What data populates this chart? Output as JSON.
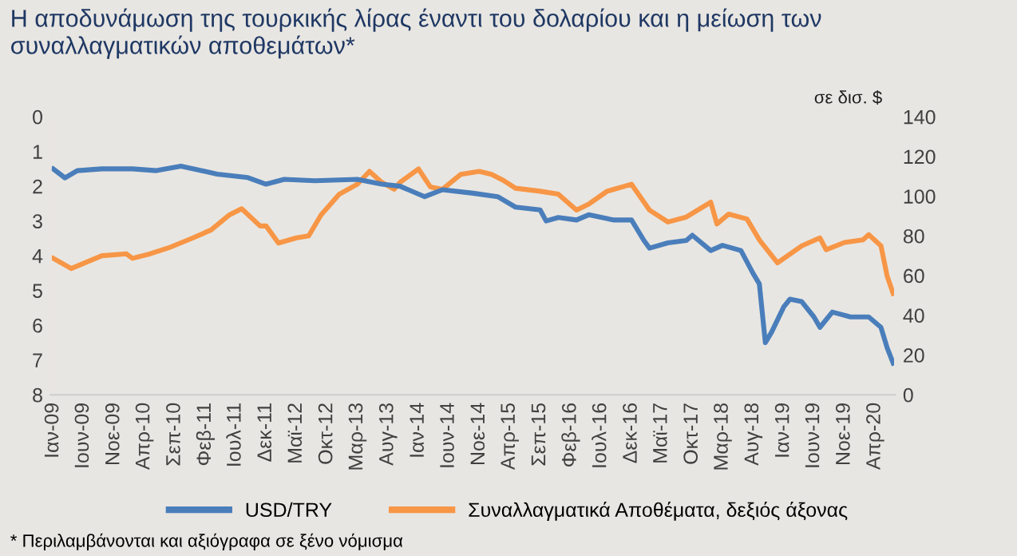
{
  "chart_data": {
    "type": "line",
    "title": "Η αποδυνάμωση της τουρκικής λίρας έναντι του δολαρίου και η μείωση των συναλλαγματικών αποθεμάτων*",
    "y2label": "σε δισ. $",
    "annotations": [
      "* Περιλαμβάνονται και αξιόγραφα σε ξένο νόμισμα"
    ],
    "xlim": [
      "2008-12-20",
      "2020-07-10"
    ],
    "xticks": [
      {
        "value": "2009-01",
        "label": "Ιαν-09"
      },
      {
        "value": "2009-06",
        "label": "Ιουν-09"
      },
      {
        "value": "2009-11",
        "label": "Νοε-09"
      },
      {
        "value": "2010-04",
        "label": "Απρ-10"
      },
      {
        "value": "2010-09",
        "label": "Σεπ-10"
      },
      {
        "value": "2011-02",
        "label": "Φεβ-11"
      },
      {
        "value": "2011-07",
        "label": "Ιουλ-11"
      },
      {
        "value": "2011-12",
        "label": "Δεκ-11"
      },
      {
        "value": "2012-05",
        "label": "Μαϊ-12"
      },
      {
        "value": "2012-10",
        "label": "Οκτ-12"
      },
      {
        "value": "2013-03",
        "label": "Μαρ-13"
      },
      {
        "value": "2013-08",
        "label": "Αυγ-13"
      },
      {
        "value": "2014-01",
        "label": "Ιαν-14"
      },
      {
        "value": "2014-06",
        "label": "Ιουν-14"
      },
      {
        "value": "2014-11",
        "label": "Νοε-14"
      },
      {
        "value": "2015-04",
        "label": "Απρ-15"
      },
      {
        "value": "2015-09",
        "label": "Σεπ-15"
      },
      {
        "value": "2016-02",
        "label": "Φεβ-16"
      },
      {
        "value": "2016-07",
        "label": "Ιουλ-16"
      },
      {
        "value": "2016-12",
        "label": "Δεκ-16"
      },
      {
        "value": "2017-05",
        "label": "Μαϊ-17"
      },
      {
        "value": "2017-10",
        "label": "Οκτ-17"
      },
      {
        "value": "2018-03",
        "label": "Μαρ-18"
      },
      {
        "value": "2018-08",
        "label": "Αυγ-18"
      },
      {
        "value": "2019-01",
        "label": "Ιαν-19"
      },
      {
        "value": "2019-06",
        "label": "Ιουν-19"
      },
      {
        "value": "2019-11",
        "label": "Νοε-19"
      },
      {
        "value": "2020-04",
        "label": "Απρ-20"
      }
    ],
    "ylim": [
      8,
      0
    ],
    "yticks": [
      0,
      1,
      2,
      3,
      4,
      5,
      6,
      7,
      8
    ],
    "y2lim": [
      0,
      140
    ],
    "y2ticks": [
      0,
      20,
      40,
      60,
      80,
      100,
      120,
      140
    ],
    "grid": false,
    "legend": "bottom",
    "marker": "none",
    "line_style": "solid",
    "series": [
      {
        "name": "USD/TRY",
        "color": "#4a7ebb",
        "x": [
          "2009-01",
          "2009-03",
          "2009-05",
          "2009-09",
          "2010-02",
          "2010-06",
          "2010-10",
          "2011-04",
          "2011-09",
          "2011-12",
          "2012-03",
          "2012-08",
          "2013-03",
          "2013-07",
          "2013-10",
          "2014-02",
          "2014-05",
          "2014-10",
          "2015-02",
          "2015-05",
          "2015-09",
          "2015-10",
          "2015-12",
          "2016-03",
          "2016-05",
          "2016-09",
          "2016-12",
          "2017-02",
          "2017-03",
          "2017-06",
          "2017-09",
          "2017-10",
          "2018-01",
          "2018-03",
          "2018-06",
          "2018-08",
          "2018-09",
          "2018-10",
          "2018-11",
          "2019-01",
          "2019-02",
          "2019-04",
          "2019-06",
          "2019-07",
          "2019-09",
          "2019-12",
          "2020-03",
          "2020-05",
          "2020-06",
          "2020-07"
        ],
        "values": [
          1.5,
          1.76,
          1.55,
          1.5,
          1.5,
          1.55,
          1.42,
          1.65,
          1.75,
          1.94,
          1.8,
          1.84,
          1.8,
          1.94,
          2.0,
          2.3,
          2.1,
          2.2,
          2.3,
          2.6,
          2.68,
          3.0,
          2.9,
          2.97,
          2.82,
          2.97,
          2.97,
          3.56,
          3.78,
          3.63,
          3.56,
          3.41,
          3.85,
          3.7,
          3.85,
          4.51,
          4.81,
          6.5,
          6.2,
          5.47,
          5.25,
          5.32,
          5.76,
          6.06,
          5.62,
          5.76,
          5.76,
          6.06,
          6.65,
          7.09
        ]
      },
      {
        "name": "Συναλλαγματικά Αποθέματα, δεξιός άξονας",
        "color": "#f79646",
        "axis": "y2",
        "x": [
          "2009-01",
          "2009-04",
          "2009-09",
          "2010-01",
          "2010-02",
          "2010-05",
          "2010-08",
          "2010-12",
          "2011-03",
          "2011-06",
          "2011-08",
          "2011-11",
          "2011-12",
          "2012-02",
          "2012-05",
          "2012-07",
          "2012-09",
          "2012-12",
          "2013-03",
          "2013-05",
          "2013-07",
          "2013-09",
          "2013-10",
          "2014-01",
          "2014-03",
          "2014-05",
          "2014-08",
          "2014-11",
          "2015-01",
          "2015-03",
          "2015-05",
          "2015-09",
          "2015-12",
          "2016-03",
          "2016-05",
          "2016-08",
          "2016-12",
          "2017-03",
          "2017-06",
          "2017-09",
          "2018-01",
          "2018-02",
          "2018-04",
          "2018-07",
          "2018-09",
          "2018-12",
          "2019-04",
          "2019-07",
          "2019-08",
          "2019-11",
          "2020-02",
          "2020-03",
          "2020-05",
          "2020-06",
          "2020-07"
        ],
        "values": [
          68.7,
          63.6,
          70,
          71,
          68.7,
          71,
          74,
          79,
          83,
          90.6,
          93.7,
          85,
          85,
          76.4,
          79,
          80,
          90.6,
          101,
          106,
          112.5,
          107,
          103.5,
          107,
          113.7,
          104.7,
          103.5,
          111,
          112.5,
          111,
          108,
          104,
          102.5,
          101,
          93,
          96,
          102.5,
          106,
          93,
          87,
          89.5,
          97,
          86,
          91,
          88.5,
          78,
          66.4,
          75,
          79,
          73,
          76.7,
          78,
          80.6,
          75,
          59.7,
          51
        ]
      }
    ]
  }
}
